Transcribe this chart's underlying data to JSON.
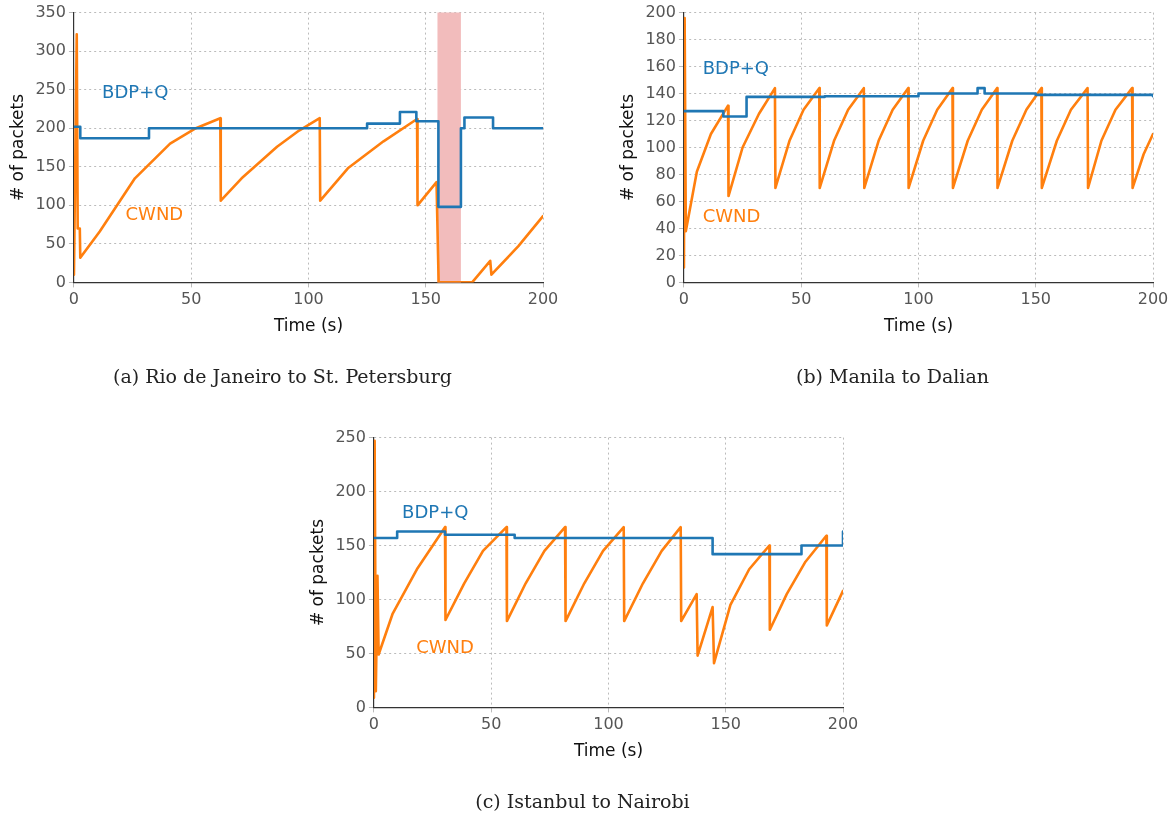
{
  "chart_data": [
    {
      "type": "line",
      "title": "(a) Rio de Janeiro to St. Petersburg",
      "xlabel": "Time (s)",
      "ylabel": "# of packets",
      "xlim": [
        0,
        200
      ],
      "xticks": [
        0,
        50,
        100,
        150,
        200
      ],
      "ylim": [
        0,
        350
      ],
      "yticks": [
        0,
        50,
        100,
        150,
        200,
        250,
        300,
        350
      ],
      "grid": true,
      "legend": false,
      "marker": "none",
      "line_style": "solid",
      "bands": [
        {
          "axis": "x",
          "from": 155,
          "to": 165,
          "color": "#f2bcbc"
        }
      ],
      "series": [
        {
          "name": "BDP+Q",
          "type": "step",
          "color": "#1f77b4",
          "x": [
            0,
            2.7,
            32,
            125,
            139,
            146,
            155.4,
            165,
            166.5,
            178.7,
            200
          ],
          "values": [
            202,
            187,
            200,
            206,
            221,
            209,
            98,
            200,
            214,
            200,
            200
          ]
        },
        {
          "name": "CWND",
          "type": "line",
          "color": "#ff7f0e",
          "x": [
            0,
            1.2,
            1.6,
            2.5,
            2.7,
            11,
            26,
            41,
            52,
            62.4,
            62.6,
            71.5,
            86.6,
            96,
            104.8,
            105,
            116.8,
            132,
            146.3,
            146.5,
            154.6,
            155.5,
            169.8,
            177.5,
            178,
            189.5,
            200
          ],
          "values": [
            10,
            322,
            70,
            70,
            32,
            66,
            135,
            180,
            200,
            213,
            106,
            135,
            176,
            197,
            213,
            106,
            148,
            183,
            212,
            100,
            130,
            0,
            0,
            28,
            10,
            47,
            86
          ]
        }
      ]
    },
    {
      "type": "line",
      "title": "(b) Manila to Dalian",
      "xlabel": "Time (s)",
      "ylabel": "# of packets",
      "xlim": [
        0,
        200
      ],
      "xticks": [
        0,
        50,
        100,
        150,
        200
      ],
      "ylim": [
        0,
        200
      ],
      "yticks": [
        0,
        20,
        40,
        60,
        80,
        100,
        120,
        140,
        160,
        180,
        200
      ],
      "grid": true,
      "legend": false,
      "marker": "none",
      "line_style": "solid",
      "series": [
        {
          "name": "BDP+Q",
          "type": "step",
          "color": "#1f77b4",
          "x": [
            0,
            16.8,
            26.7,
            60,
            100,
            125.2,
            128.2,
            150,
            200
          ],
          "values": [
            127,
            123,
            137.5,
            138,
            140,
            144,
            140,
            139,
            138
          ]
        },
        {
          "name": "CWND",
          "type": "line",
          "color": "#ff7f0e",
          "x": [
            0,
            0.3,
            0.8,
            5.5,
            11.5,
            18.8,
            19,
            25,
            32,
            38.8,
            39,
            45,
            51,
            57.7,
            57.9,
            64,
            70,
            76.7,
            76.9,
            83,
            89,
            95.6,
            95.8,
            102,
            108,
            114.5,
            114.7,
            121,
            127,
            133.5,
            133.7,
            140,
            146,
            152.4,
            152.6,
            159,
            165,
            172.1,
            172.3,
            178,
            184,
            191.1,
            191.3,
            196,
            200
          ],
          "values": [
            11,
            196,
            38,
            82,
            110,
            131,
            64,
            100,
            125,
            144,
            70,
            105,
            128,
            144,
            70,
            105,
            128,
            144,
            70,
            105,
            128,
            144,
            70,
            105,
            128,
            144,
            70,
            105,
            128,
            144,
            70,
            105,
            128,
            144,
            70,
            105,
            128,
            144,
            70,
            105,
            128,
            144,
            70,
            95,
            110
          ]
        }
      ]
    },
    {
      "type": "line",
      "title": "(c) Istanbul to Nairobi",
      "xlabel": "Time (s)",
      "ylabel": "# of packets",
      "xlim": [
        0,
        200
      ],
      "xticks": [
        0,
        50,
        100,
        150,
        200
      ],
      "ylim": [
        0,
        250
      ],
      "yticks": [
        0,
        50,
        100,
        150,
        200,
        250
      ],
      "grid": true,
      "legend": false,
      "marker": "none",
      "line_style": "solid",
      "series": [
        {
          "name": "BDP+Q",
          "type": "step",
          "color": "#1f77b4",
          "x": [
            0,
            9.9,
            30.3,
            60,
            144.4,
            182.3,
            200,
            200
          ],
          "values": [
            157,
            163,
            160,
            157,
            142,
            150,
            150,
            163
          ]
        },
        {
          "name": "CWND",
          "type": "line",
          "color": "#ff7f0e",
          "x": [
            0,
            0.3,
            0.8,
            1.5,
            2,
            8,
            18.6,
            30.3,
            30.5,
            38.5,
            46.5,
            56.5,
            56.7,
            64.7,
            72.7,
            81.5,
            81.7,
            89.7,
            97.7,
            106.5,
            106.7,
            114.7,
            122.7,
            130.8,
            131,
            137.6,
            138,
            144.4,
            145,
            152,
            160,
            168.6,
            168.8,
            176,
            184,
            192.9,
            193.1,
            200
          ],
          "values": [
            9,
            247,
            15,
            122,
            49,
            87,
            129,
            167,
            81,
            115,
            145,
            167,
            80,
            115,
            145,
            167,
            80,
            115,
            145,
            167,
            80,
            115,
            145,
            167,
            80,
            105,
            48,
            93,
            41,
            95,
            128,
            150,
            72,
            105,
            135,
            159,
            76,
            108
          ]
        }
      ]
    }
  ]
}
